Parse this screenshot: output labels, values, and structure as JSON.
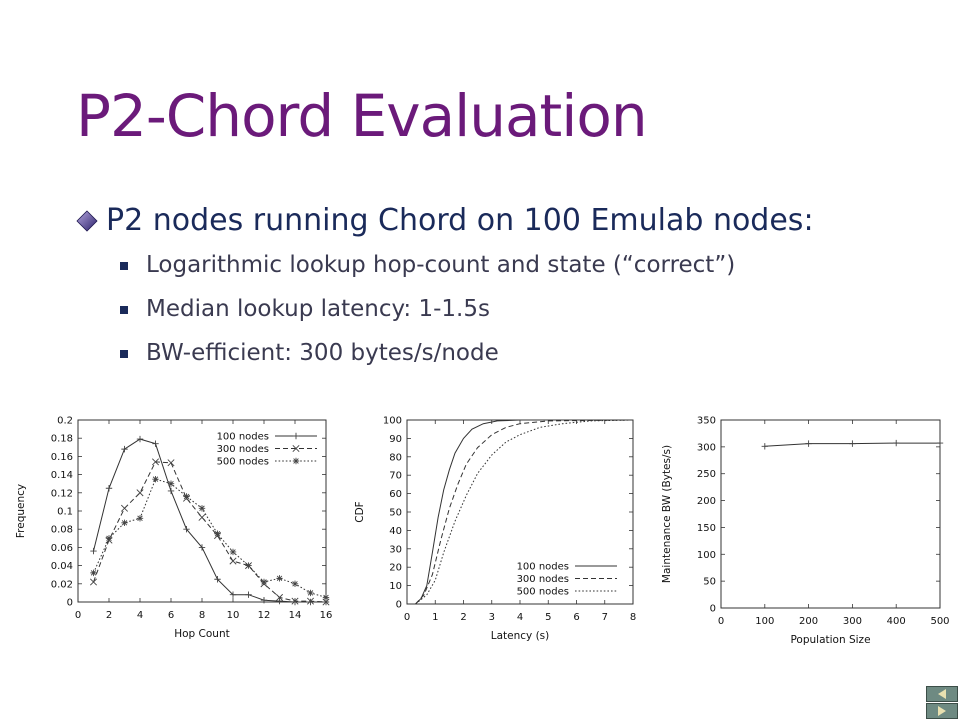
{
  "slide": {
    "title": "P2-Chord Evaluation",
    "bullets": [
      {
        "text": "P2 nodes running Chord on 100 Emulab nodes:",
        "sub": [
          "Logarithmic lookup hop-count and state (“correct”)",
          "Median lookup latency: 1-1.5s",
          "BW-efficient: 300 bytes/s/node"
        ]
      }
    ],
    "bullet_color": "#1a2a5a",
    "title_color": "#6b1a7a"
  },
  "chart_data": [
    {
      "type": "line",
      "xlabel": "Hop Count",
      "ylabel": "Frequency",
      "xlim": [
        0,
        16
      ],
      "ylim": [
        0,
        0.2
      ],
      "xticks": [
        0,
        2,
        4,
        6,
        8,
        10,
        12,
        14,
        16
      ],
      "yticks": [
        0,
        0.02,
        0.04,
        0.06,
        0.08,
        0.1,
        0.12,
        0.14,
        0.16,
        0.18,
        0.2
      ],
      "legend_position": "top-right",
      "series": [
        {
          "name": "100 nodes",
          "marker": "plus",
          "dash": "solid",
          "x": [
            1,
            2,
            3,
            4,
            5,
            6,
            7,
            8,
            9,
            10,
            11,
            12,
            13,
            14,
            15,
            16
          ],
          "y": [
            0.056,
            0.125,
            0.168,
            0.179,
            0.174,
            0.122,
            0.08,
            0.06,
            0.025,
            0.008,
            0.008,
            0.002,
            0.001,
            0,
            0,
            0
          ]
        },
        {
          "name": "300 nodes",
          "marker": "x",
          "dash": "dashed",
          "x": [
            1,
            2,
            3,
            4,
            5,
            6,
            7,
            8,
            9,
            10,
            11,
            12,
            13,
            14,
            15,
            16
          ],
          "y": [
            0.022,
            0.068,
            0.103,
            0.12,
            0.154,
            0.153,
            0.114,
            0.093,
            0.073,
            0.045,
            0.04,
            0.02,
            0.005,
            0.001,
            0.001,
            0
          ]
        },
        {
          "name": "500 nodes",
          "marker": "star",
          "dash": "dotted",
          "x": [
            1,
            2,
            3,
            4,
            5,
            6,
            7,
            8,
            9,
            10,
            11,
            12,
            13,
            14,
            15,
            16
          ],
          "y": [
            0.032,
            0.07,
            0.087,
            0.092,
            0.135,
            0.13,
            0.116,
            0.103,
            0.075,
            0.055,
            0.04,
            0.022,
            0.026,
            0.02,
            0.01,
            0.005
          ]
        }
      ]
    },
    {
      "type": "line",
      "xlabel": "Latency (s)",
      "ylabel": "CDF",
      "xlim": [
        0,
        8
      ],
      "ylim": [
        0,
        100
      ],
      "xticks": [
        0,
        1,
        2,
        3,
        4,
        5,
        6,
        7,
        8
      ],
      "yticks": [
        0,
        10,
        20,
        30,
        40,
        50,
        60,
        70,
        80,
        90,
        100
      ],
      "legend_position": "bottom-right",
      "series": [
        {
          "name": "100 nodes",
          "dash": "solid",
          "x": [
            0.3,
            0.5,
            0.7,
            0.9,
            1.1,
            1.3,
            1.5,
            1.7,
            2.0,
            2.3,
            2.7,
            3.2,
            4.0,
            8.0
          ],
          "y": [
            0,
            3,
            10,
            28,
            47,
            62,
            73,
            82,
            90,
            95,
            98,
            99.5,
            100,
            100
          ]
        },
        {
          "name": "300 nodes",
          "dash": "dashed",
          "x": [
            0.3,
            0.6,
            0.9,
            1.2,
            1.5,
            1.8,
            2.1,
            2.5,
            3.0,
            3.5,
            4.0,
            5.0,
            8.0
          ],
          "y": [
            0,
            5,
            16,
            35,
            52,
            65,
            76,
            85,
            92,
            96,
            98,
            99.5,
            100
          ]
        },
        {
          "name": "500 nodes",
          "dash": "dotted",
          "x": [
            0.3,
            0.7,
            1.0,
            1.3,
            1.7,
            2.1,
            2.5,
            3.0,
            3.5,
            4.0,
            4.7,
            5.5,
            6.5,
            8.0
          ],
          "y": [
            0,
            5,
            13,
            28,
            45,
            59,
            71,
            81,
            88,
            92,
            96,
            98,
            99.5,
            100
          ]
        }
      ]
    },
    {
      "type": "line",
      "xlabel": "Population Size",
      "ylabel": "Maintenance BW (Bytes/s)",
      "xlim": [
        0,
        500
      ],
      "ylim": [
        0,
        350
      ],
      "xticks": [
        0,
        100,
        200,
        300,
        400,
        500
      ],
      "yticks": [
        0,
        50,
        100,
        150,
        200,
        250,
        300,
        350
      ],
      "series": [
        {
          "marker": "plus",
          "dash": "solid",
          "x": [
            100,
            200,
            300,
            400,
            500
          ],
          "y": [
            301,
            306,
            306,
            307,
            307
          ]
        }
      ]
    }
  ]
}
